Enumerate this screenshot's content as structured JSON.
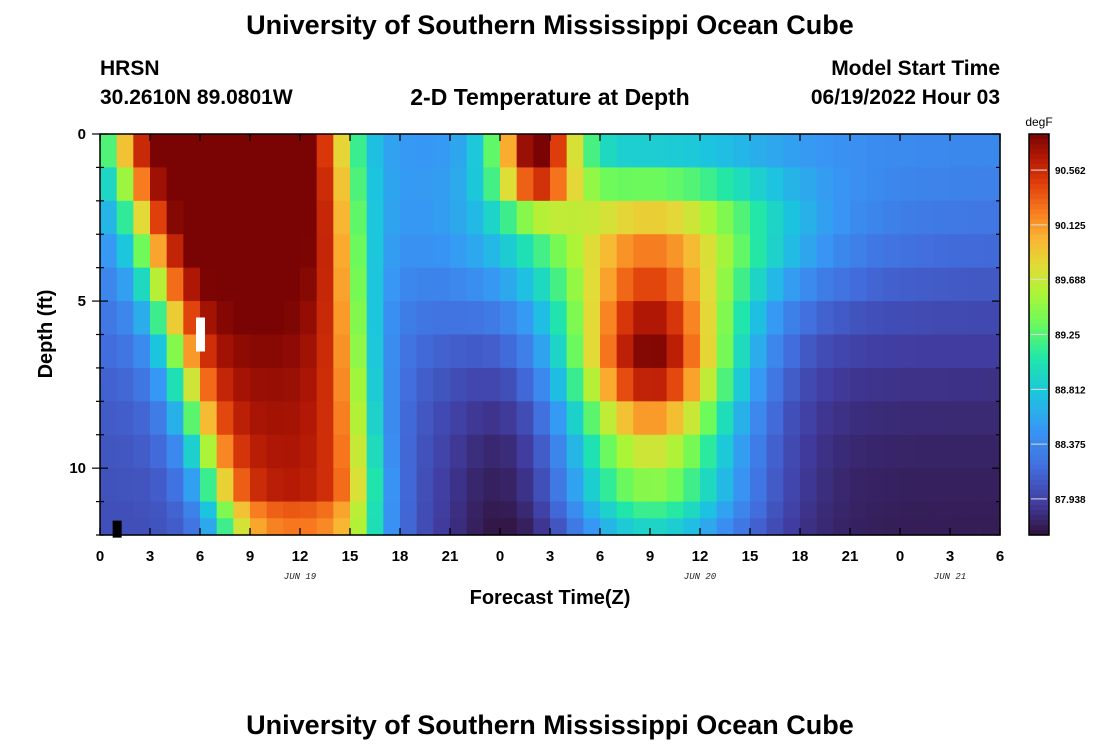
{
  "header": {
    "title": "University of Southern Mississippi Ocean Cube",
    "station": "HRSN",
    "coords": "30.2610N  89.0801W",
    "subtitle": "2-D Temperature at Depth",
    "model_start_label": "Model Start Time",
    "model_start_value": "06/19/2022 Hour 03"
  },
  "footer": {
    "title": "University of Southern Mississippi Ocean Cube"
  },
  "chart_data": {
    "type": "heatmap",
    "title": "2-D Temperature at Depth",
    "xlabel": "Forecast Time(Z)",
    "ylabel": "Depth (ft)",
    "x_tick_labels": [
      "0",
      "3",
      "6",
      "9",
      "12",
      "15",
      "18",
      "21",
      "0",
      "3",
      "6",
      "9",
      "12",
      "15",
      "18",
      "21",
      "0",
      "3",
      "6"
    ],
    "x_range_hours": [
      0,
      54
    ],
    "date_labels": [
      "JUN 19",
      "JUN 20",
      "JUN 21"
    ],
    "date_label_hours": [
      12,
      36,
      51
    ],
    "y_ticks": [
      0,
      5,
      10
    ],
    "y_range_ft": [
      0,
      12
    ],
    "invert_y": true,
    "colorbar": {
      "unit": "degF",
      "range": [
        87.65,
        90.85
      ],
      "tick_values": [
        90.562,
        90.125,
        89.688,
        89.25,
        88.812,
        88.375,
        87.938
      ],
      "tick_labels": [
        "90.562",
        "90.125",
        "89.688",
        "89.25",
        "88.812",
        "88.375",
        "87.938"
      ],
      "colormap": "turbo-like (dark purple - blue - cyan - green - yellow - orange - red - dark red)"
    },
    "depth_levels_ft": [
      0,
      1,
      2,
      3,
      4,
      5,
      6,
      7,
      8,
      9,
      10,
      11,
      11.5
    ],
    "time_resolution_hours": 1,
    "missing_cells": [
      {
        "hour": 6,
        "depth_ft": 6.0,
        "color": "white"
      },
      {
        "hour": 1,
        "depth_ft": 11.75,
        "color": "black"
      }
    ],
    "note_values": "Temperature field estimated from the color map: warm core (~90.7F) 3-12h on June 19 spanning surface to bottom with tilt; second warm core 6-12h June 20 at 5-9 ft; cooler (~88.0-88.4F) elsewhere, coldest near bottom around 0-3h June 20."
  }
}
